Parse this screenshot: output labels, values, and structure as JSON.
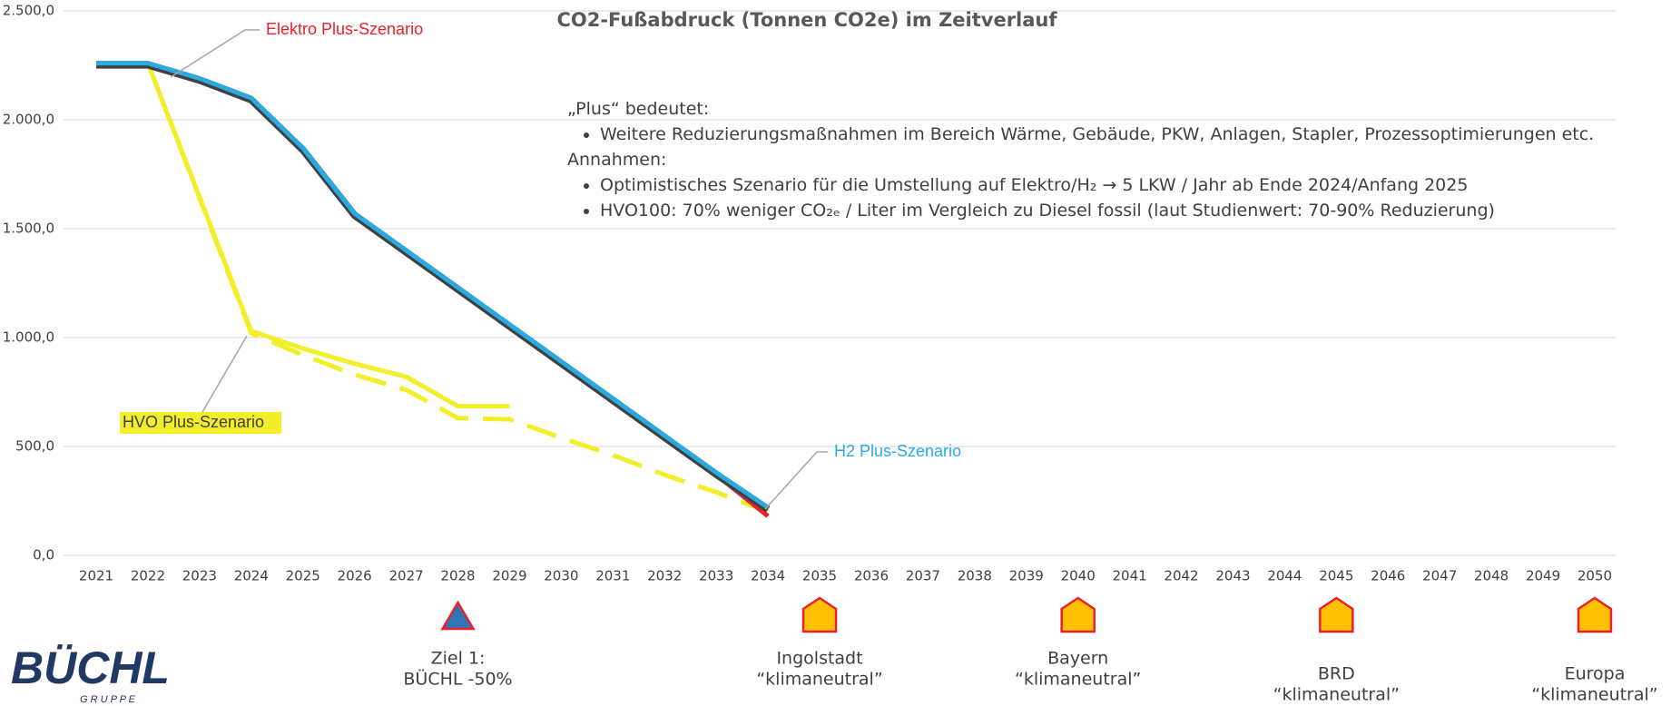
{
  "chart_data": {
    "type": "line",
    "title": "CO2-Fußabdruck (Tonnen CO2e) im Zeitverlauf",
    "categories": [
      "2021",
      "2022",
      "2023",
      "2024",
      "2025",
      "2026",
      "2027",
      "2028",
      "2029",
      "2030",
      "2031",
      "2032",
      "2033",
      "2034",
      "2035",
      "2036",
      "2037",
      "2038",
      "2039",
      "2040",
      "2041",
      "2042",
      "2043",
      "2044",
      "2045",
      "2046",
      "2047",
      "2048",
      "2049",
      "2050"
    ],
    "ylim": [
      0,
      2500
    ],
    "yticks": [
      {
        "value": 0,
        "label": "0,0"
      },
      {
        "value": 500,
        "label": "500,0"
      },
      {
        "value": 1000,
        "label": "1.000,0"
      },
      {
        "value": 1500,
        "label": "1.500,0"
      },
      {
        "value": 2000,
        "label": "2.000,0"
      },
      {
        "value": 2500,
        "label": "2.500,0"
      }
    ],
    "grid": true,
    "series": [
      {
        "name": "Elektro Plus-Szenario",
        "color": "#e8212c",
        "values": [
          2260,
          2260,
          2190,
          2100,
          1870,
          1570,
          1400,
          1230,
          1060,
          890,
          720,
          550,
          370,
          180,
          null,
          null,
          null,
          null,
          null,
          null,
          null,
          null,
          null,
          null,
          null,
          null,
          null,
          null,
          null,
          null
        ]
      },
      {
        "name": "H2 Plus-Szenario",
        "color": "#29abe2",
        "values": [
          2260,
          2260,
          2190,
          2100,
          1870,
          1570,
          1400,
          1230,
          1060,
          890,
          720,
          550,
          380,
          220,
          null,
          null,
          null,
          null,
          null,
          null,
          null,
          null,
          null,
          null,
          null,
          null,
          null,
          null,
          null,
          null
        ]
      },
      {
        "name": "HVO Plus-Szenario",
        "color": "#f2ee2a",
        "values": [
          2260,
          2260,
          1645,
          1030,
          950,
          880,
          820,
          685,
          685,
          null,
          null,
          null,
          null,
          null,
          null,
          null,
          null,
          null,
          null,
          null,
          null,
          null,
          null,
          null,
          null,
          null,
          null,
          null,
          null,
          null
        ]
      },
      {
        "color": "#f2ee2a",
        "dashed": true,
        "values": [
          2260,
          2260,
          1640,
          1020,
          920,
          830,
          760,
          630,
          625,
          540,
          460,
          370,
          290,
          200,
          null,
          null,
          null,
          null,
          null,
          null,
          null,
          null,
          null,
          null,
          null,
          null,
          null,
          null,
          null,
          null
        ]
      }
    ]
  },
  "notes": {
    "heading1": "„Plus“ bedeutet:",
    "items1": [
      "Weitere Reduzierungsmaßnahmen im Bereich Wärme, Gebäude, PKW, Anlagen, Stapler, Prozessoptimierungen etc."
    ],
    "heading2": "Annahmen:",
    "items2": [
      "Optimistisches Szenario für die Umstellung auf Elektro/H₂ → 5 LKW / Jahr ab Ende 2024/Anfang 2025",
      "HVO100: 70% weniger CO₂ₑ / Liter im Vergleich zu Diesel fossil (laut Studienwert: 70-90% Reduzierung)"
    ]
  },
  "milestones": [
    {
      "at": "2028",
      "shape": "triangle",
      "lines": [
        "Ziel 1:",
        "BÜCHL -50%"
      ]
    },
    {
      "at": "2035",
      "shape": "house",
      "lines": [
        "Ingolstadt",
        "“klimaneutral”"
      ]
    },
    {
      "at": "2040",
      "shape": "house",
      "lines": [
        "Bayern",
        "“klimaneutral”"
      ]
    },
    {
      "at": "2045",
      "shape": "house",
      "lines": [
        "BRD",
        "“klimaneutral”"
      ]
    },
    {
      "at": "2050",
      "shape": "house",
      "lines": [
        "Europa",
        "“klimaneutral”"
      ]
    }
  ],
  "logo": {
    "name": "BÜCHL",
    "sub": "G R U P P E"
  }
}
